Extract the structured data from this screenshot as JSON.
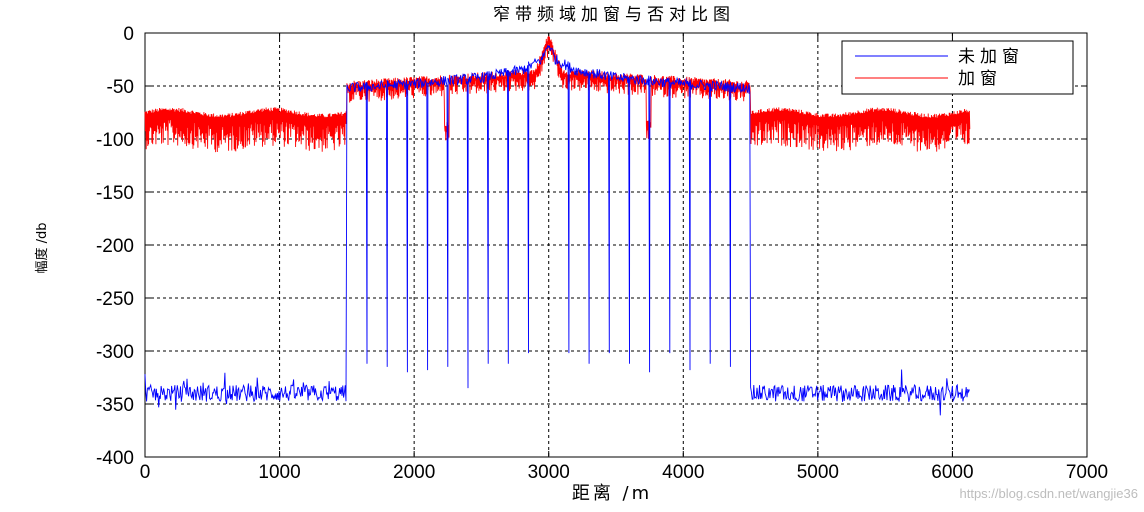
{
  "chart_data": {
    "type": "line",
    "title": "窄带频域加窗与否对比图",
    "xlabel": "距离 /m",
    "ylabel": "幅度 /db",
    "xlim": [
      0,
      7000
    ],
    "ylim": [
      -400,
      0
    ],
    "xticks": [
      0,
      1000,
      2000,
      3000,
      4000,
      5000,
      6000,
      7000
    ],
    "yticks": [
      0,
      -50,
      -100,
      -150,
      -200,
      -250,
      -300,
      -350,
      -400
    ],
    "grid": true,
    "legend_position": "top-right",
    "series": [
      {
        "name": "未加窗",
        "color": "#0000ff",
        "noise_floor_level": -340,
        "noise_floor_ranges": [
          [
            0,
            1500
          ],
          [
            4500,
            6130
          ]
        ],
        "band_range": [
          1500,
          4500
        ],
        "band_envelope": [
          [
            1500,
            -52
          ],
          [
            2000,
            -48
          ],
          [
            2500,
            -42
          ],
          [
            2800,
            -35
          ],
          [
            2950,
            -25
          ],
          [
            3000,
            -10
          ],
          [
            3050,
            -25
          ],
          [
            3200,
            -35
          ],
          [
            3500,
            -42
          ],
          [
            4000,
            -48
          ],
          [
            4500,
            -52
          ]
        ],
        "nulls": [
          {
            "x": 1650,
            "y": -312
          },
          {
            "x": 1800,
            "y": -315
          },
          {
            "x": 1950,
            "y": -320
          },
          {
            "x": 2100,
            "y": -318
          },
          {
            "x": 2250,
            "y": -315
          },
          {
            "x": 2400,
            "y": -335
          },
          {
            "x": 2550,
            "y": -312
          },
          {
            "x": 2700,
            "y": -312
          },
          {
            "x": 2850,
            "y": -302
          },
          {
            "x": 3150,
            "y": -302
          },
          {
            "x": 3300,
            "y": -312
          },
          {
            "x": 3450,
            "y": -302
          },
          {
            "x": 3600,
            "y": -312
          },
          {
            "x": 3750,
            "y": -320
          },
          {
            "x": 3900,
            "y": -302
          },
          {
            "x": 4050,
            "y": -318
          },
          {
            "x": 4200,
            "y": -312
          },
          {
            "x": 4350,
            "y": -315
          }
        ]
      },
      {
        "name": "加窗",
        "color": "#ff0000",
        "out_of_band_level": -75,
        "out_of_band_ranges": [
          [
            0,
            1500
          ],
          [
            4500,
            6130
          ]
        ],
        "band_envelope": [
          [
            1500,
            -48
          ],
          [
            2000,
            -44
          ],
          [
            2500,
            -40
          ],
          [
            2900,
            -36
          ],
          [
            3000,
            -2
          ],
          [
            3100,
            -36
          ],
          [
            3500,
            -40
          ],
          [
            4000,
            -44
          ],
          [
            4500,
            -48
          ]
        ],
        "notches": [
          {
            "x": 2240,
            "y": -85
          },
          {
            "x": 3740,
            "y": -85
          }
        ]
      }
    ]
  },
  "watermark": "https://blog.csdn.net/wangjie36"
}
